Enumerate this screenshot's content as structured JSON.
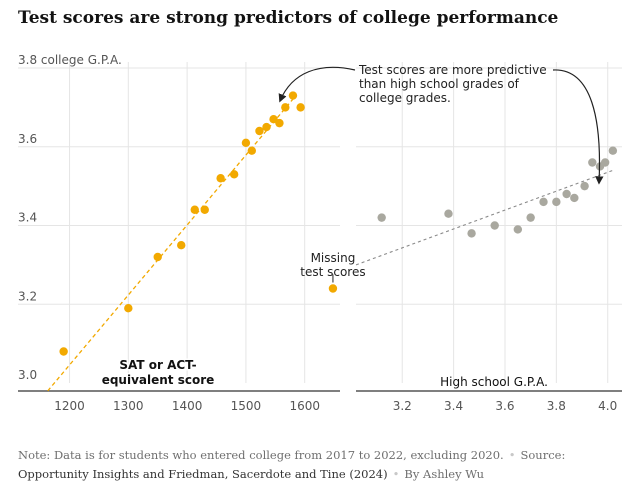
{
  "title": "Test scores are strong predictors of college performance",
  "note": {
    "prefix": "Note:",
    "text": "Data is for students who entered college from 2017 to 2022, excluding 2020.",
    "source_prefix": "Source:",
    "source": "Opportunity Insights and Friedman, Sacerdote and Tine (2024)",
    "byline": "By Ashley Wu"
  },
  "colors": {
    "left_points": "#f2a900",
    "right_points": "#a9a89f",
    "right_trend": "#8a8a8a",
    "grid": "#e5e5e5",
    "axis": "#333333"
  },
  "chart_data": [
    {
      "type": "scatter",
      "ylabel": "college G.P.A.",
      "xlabel": "SAT or ACT-equivalent score",
      "xlabel_lines": [
        "SAT or ACT-",
        "equivalent score"
      ],
      "ylim": [
        3.0,
        3.8
      ],
      "xlim": [
        1160,
        1660
      ],
      "yticks": [
        3.0,
        3.2,
        3.4,
        3.6,
        3.8
      ],
      "ytick_labels": [
        "3.0",
        "3.2",
        "3.4",
        "3.6",
        "3.8 college G.P.A."
      ],
      "xticks": [
        1200,
        1300,
        1400,
        1500,
        1600
      ],
      "grid": true,
      "trendline": {
        "style": "dashed",
        "from": [
          1163,
          2.98
        ],
        "to": [
          1585,
          3.73
        ]
      },
      "points": [
        {
          "x": 1190,
          "y": 3.08
        },
        {
          "x": 1300,
          "y": 3.19
        },
        {
          "x": 1350,
          "y": 3.32
        },
        {
          "x": 1390,
          "y": 3.35
        },
        {
          "x": 1413,
          "y": 3.44
        },
        {
          "x": 1430,
          "y": 3.44
        },
        {
          "x": 1457,
          "y": 3.52
        },
        {
          "x": 1480,
          "y": 3.53
        },
        {
          "x": 1500,
          "y": 3.61
        },
        {
          "x": 1510,
          "y": 3.59
        },
        {
          "x": 1523,
          "y": 3.64
        },
        {
          "x": 1535,
          "y": 3.65
        },
        {
          "x": 1547,
          "y": 3.67
        },
        {
          "x": 1557,
          "y": 3.66
        },
        {
          "x": 1567,
          "y": 3.7
        },
        {
          "x": 1580,
          "y": 3.73
        },
        {
          "x": 1593,
          "y": 3.7
        }
      ],
      "missing": {
        "x": 1648,
        "y": 3.24
      },
      "annotations": {
        "missing_lines": [
          "Missing",
          "test scores"
        ]
      }
    },
    {
      "type": "scatter",
      "xlabel": "High school G.P.A.",
      "ylim": [
        3.0,
        3.8
      ],
      "xlim": [
        3.02,
        4.04
      ],
      "xticks": [
        3.2,
        3.4,
        3.6,
        3.8,
        4.0
      ],
      "xtick_labels": [
        "3.2",
        "3.4",
        "3.6",
        "3.8",
        "4.0"
      ],
      "grid": true,
      "trendline": {
        "style": "dashed",
        "from": [
          3.02,
          3.3
        ],
        "to": [
          4.02,
          3.54
        ]
      },
      "points": [
        {
          "x": 3.12,
          "y": 3.42
        },
        {
          "x": 3.38,
          "y": 3.43
        },
        {
          "x": 3.47,
          "y": 3.38
        },
        {
          "x": 3.56,
          "y": 3.4
        },
        {
          "x": 3.65,
          "y": 3.39
        },
        {
          "x": 3.7,
          "y": 3.42
        },
        {
          "x": 3.75,
          "y": 3.46
        },
        {
          "x": 3.8,
          "y": 3.46
        },
        {
          "x": 3.84,
          "y": 3.48
        },
        {
          "x": 3.87,
          "y": 3.47
        },
        {
          "x": 3.91,
          "y": 3.5
        },
        {
          "x": 3.94,
          "y": 3.56
        },
        {
          "x": 3.97,
          "y": 3.55
        },
        {
          "x": 3.99,
          "y": 3.56
        },
        {
          "x": 4.02,
          "y": 3.59
        }
      ],
      "annotations": {
        "predictive_lines": [
          "Test scores are more predictive",
          "than high school grades of",
          "college grades."
        ]
      }
    }
  ]
}
